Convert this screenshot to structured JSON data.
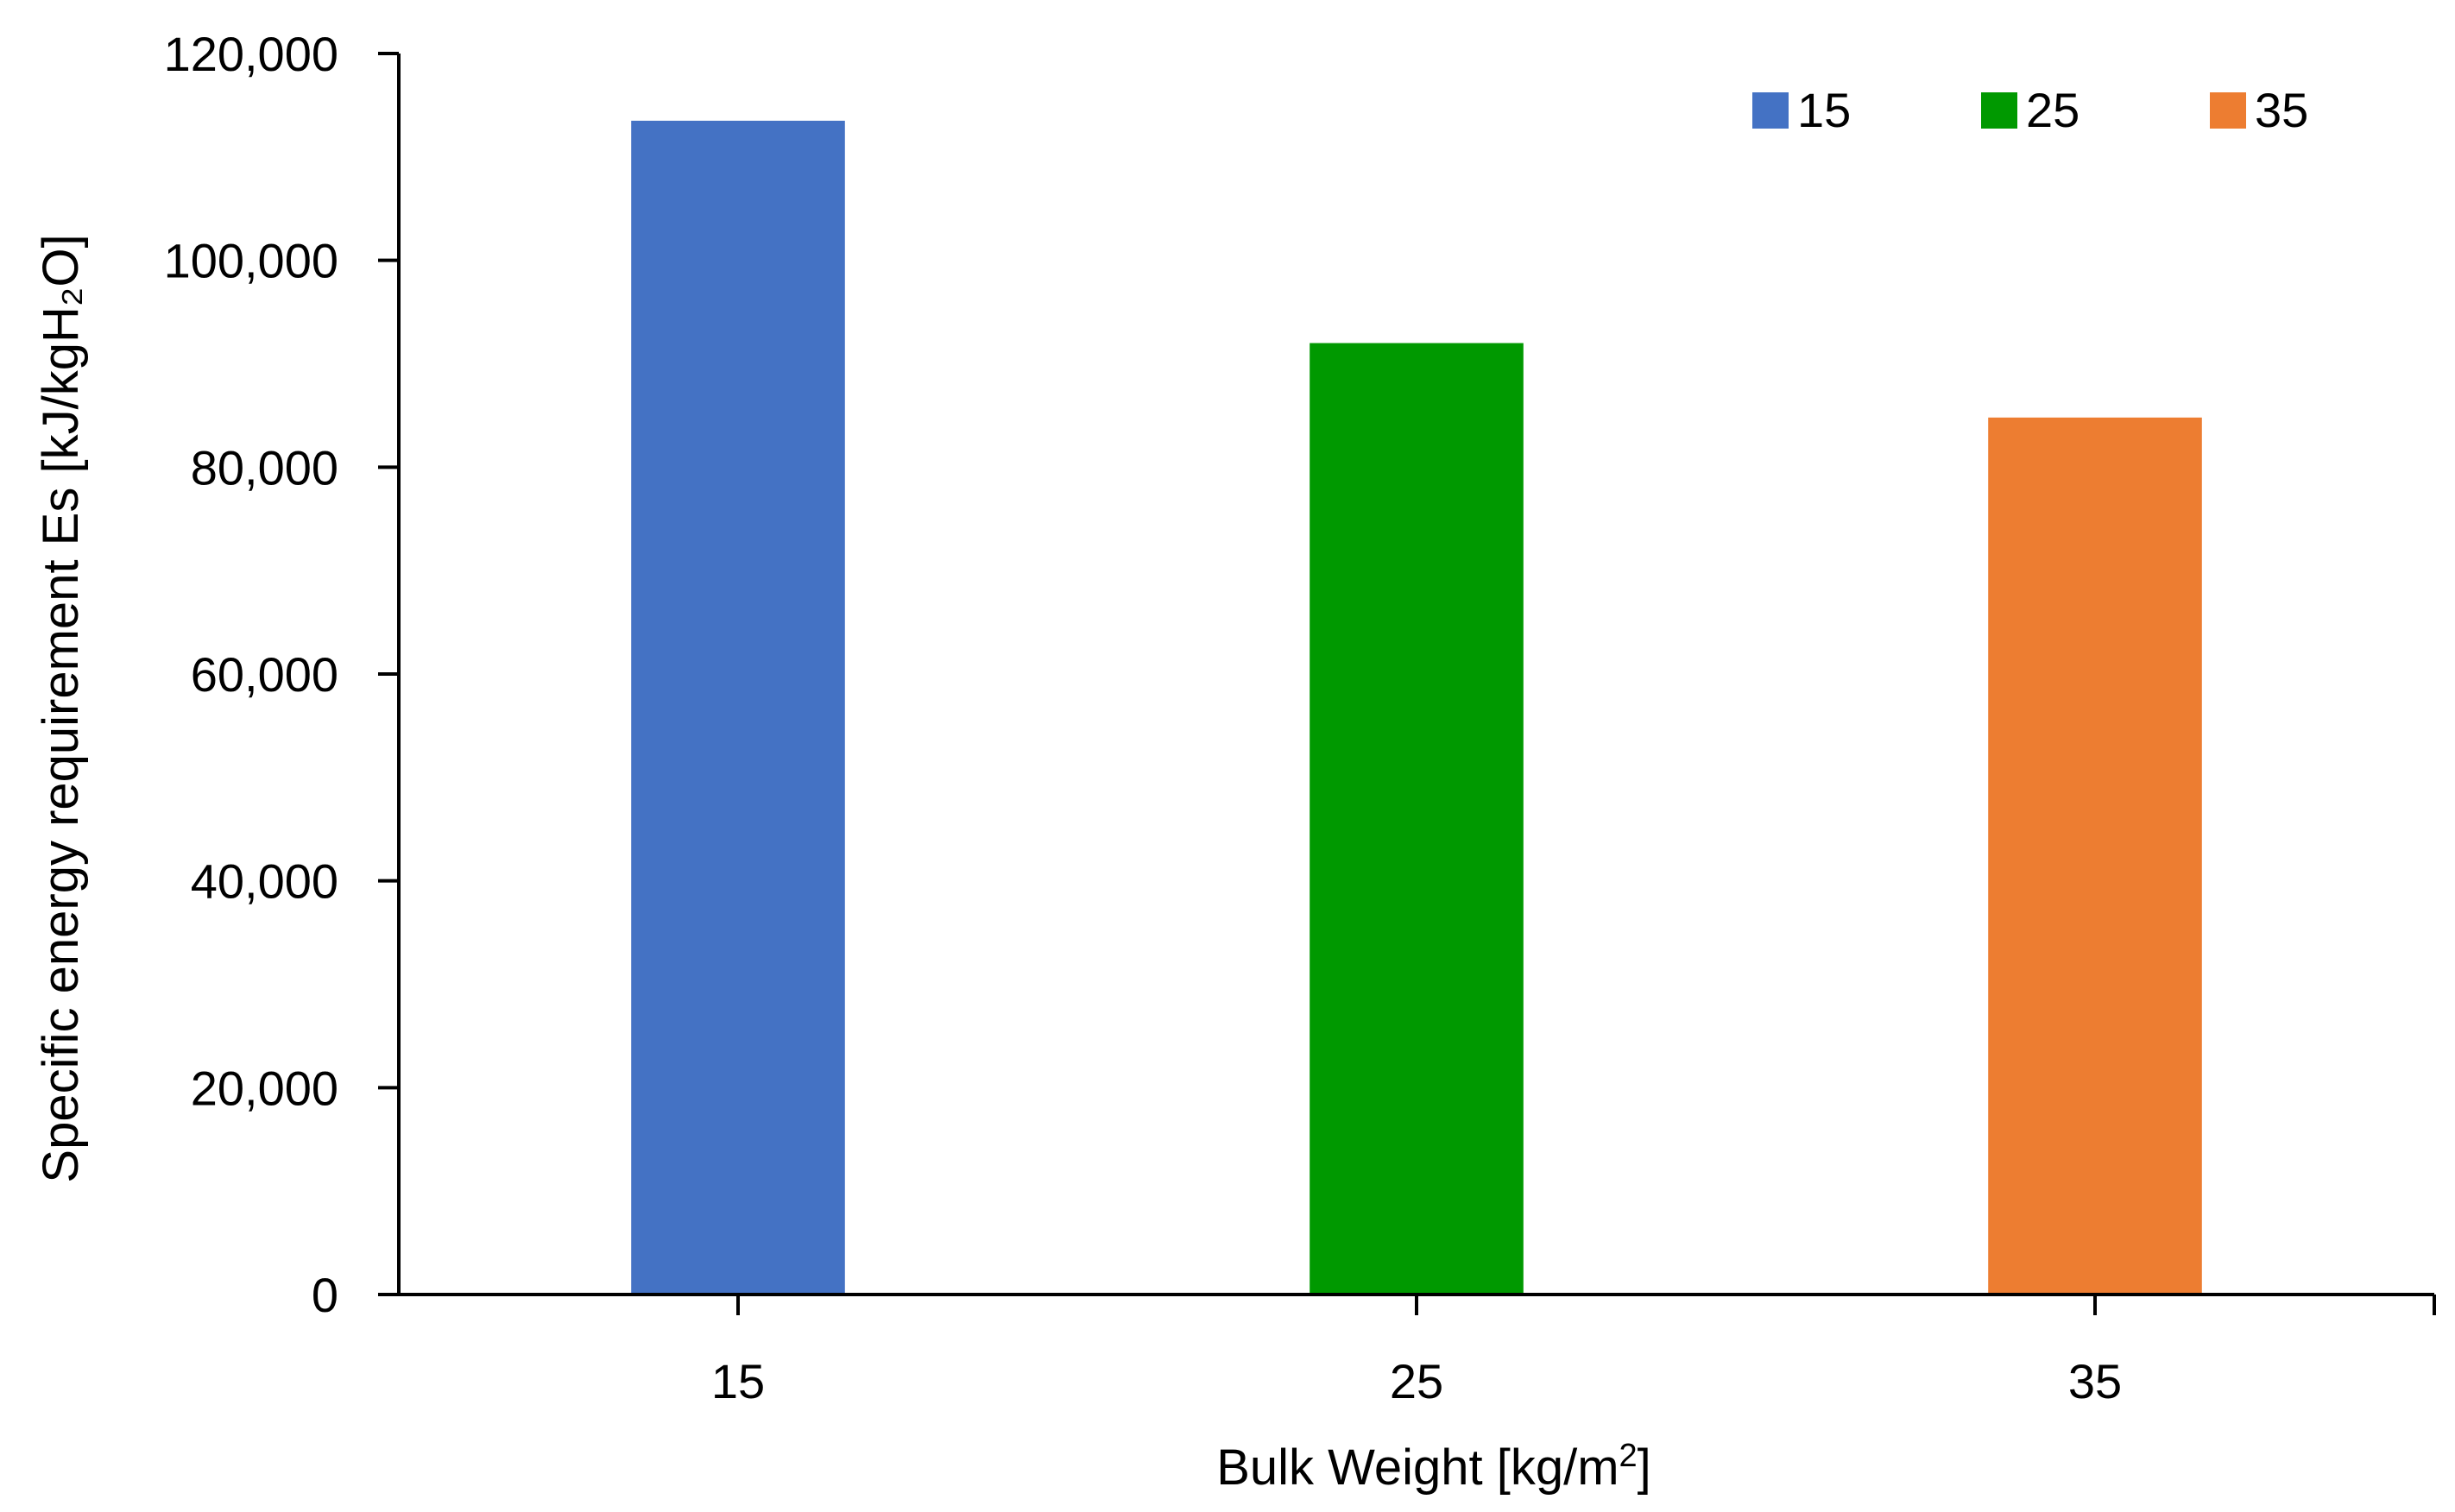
{
  "chart_data": {
    "type": "bar",
    "categories": [
      "15",
      "25",
      "35"
    ],
    "values": [
      113500,
      92000,
      84800
    ],
    "colors": [
      "#4472C4",
      "#009900",
      "#ED7D31"
    ],
    "legend": {
      "position": "top-right",
      "entries": [
        "15",
        "25",
        "35"
      ]
    },
    "xlabel": {
      "main": "Bulk Weight [kg/m",
      "sup": "2",
      "end": "]"
    },
    "ylabel": "Specific energy requirement Es [kJ/kgH₂O]",
    "ylim": [
      0,
      120000
    ],
    "yticks": [
      0,
      20000,
      40000,
      60000,
      80000,
      100000,
      120000
    ],
    "ytick_labels": [
      "0",
      "20,000",
      "40,000",
      "60,000",
      "80,000",
      "100,000",
      "120,000"
    ],
    "grid": false
  }
}
